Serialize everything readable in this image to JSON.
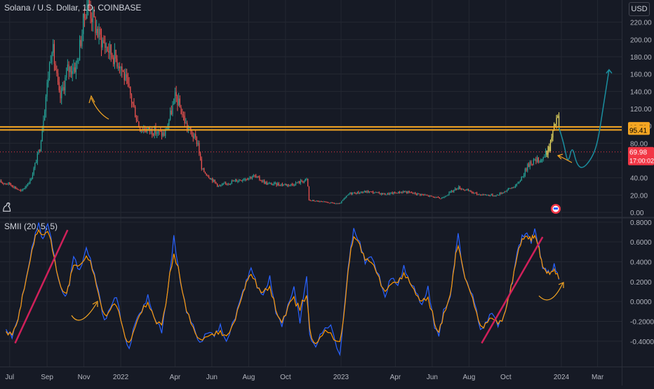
{
  "header": {
    "symbol_title": "Solana / U.S. Dollar, 1D, COINBASE",
    "currency": "USD"
  },
  "indicator": {
    "title": "SMII (20, 5, 5)"
  },
  "colors": {
    "background": "#161a25",
    "grid": "#242832",
    "candle_up": "#26a69a",
    "candle_down": "#ef5350",
    "level_line": "#f5a623",
    "price_line": "#f23645",
    "projection": "#1a8e9f",
    "smi": "#2962ff",
    "signal": "#ff9800",
    "trendline": "#d0205a",
    "annotation_arrow": "#f5a623",
    "highlight": "#f5e663"
  },
  "chart_data": [
    {
      "type": "candlestick",
      "title": "Solana / U.S. Dollar, 1D, COINBASE",
      "y_ticks": [
        "220.00",
        "200.00",
        "180.00",
        "160.00",
        "140.00",
        "120.00",
        "100.00",
        "80.00",
        "60.00",
        "40.00",
        "20.00",
        "0.00"
      ],
      "ylim": [
        0,
        240
      ],
      "x_ticks": [
        "Jul",
        "Sep",
        "Nov",
        "2022",
        "Apr",
        "Jun",
        "Aug",
        "Oct",
        "2023",
        "Apr",
        "Jun",
        "Aug",
        "Oct",
        "2024",
        "Mar"
      ],
      "x_tick_dates": [
        "2021-07-01",
        "2021-09-01",
        "2021-11-01",
        "2022-01-01",
        "2022-04-01",
        "2022-06-01",
        "2022-08-01",
        "2022-10-01",
        "2023-01-01",
        "2023-04-01",
        "2023-06-01",
        "2023-08-01",
        "2023-10-01",
        "2024-01-01",
        "2024-03-01"
      ],
      "xlim": [
        "2021-06-15",
        "2024-04-10"
      ],
      "price_path": [
        [
          "2021-06-15",
          35
        ],
        [
          "2021-07-01",
          33
        ],
        [
          "2021-07-20",
          24
        ],
        [
          "2021-08-05",
          38
        ],
        [
          "2021-08-20",
          75
        ],
        [
          "2021-09-09",
          195
        ],
        [
          "2021-09-22",
          130
        ],
        [
          "2021-10-05",
          165
        ],
        [
          "2021-10-20",
          170
        ],
        [
          "2021-11-06",
          245
        ],
        [
          "2021-11-25",
          205
        ],
        [
          "2021-12-10",
          190
        ],
        [
          "2021-12-31",
          172
        ],
        [
          "2022-01-15",
          140
        ],
        [
          "2022-02-01",
          98
        ],
        [
          "2022-02-20",
          95
        ],
        [
          "2022-03-15",
          90
        ],
        [
          "2022-04-02",
          135
        ],
        [
          "2022-04-20",
          100
        ],
        [
          "2022-05-09",
          80
        ],
        [
          "2022-05-15",
          50
        ],
        [
          "2022-06-13",
          30
        ],
        [
          "2022-07-01",
          35
        ],
        [
          "2022-08-10",
          42
        ],
        [
          "2022-09-01",
          33
        ],
        [
          "2022-10-10",
          32
        ],
        [
          "2022-11-06",
          38
        ],
        [
          "2022-11-09",
          14
        ],
        [
          "2022-12-29",
          9.8
        ],
        [
          "2023-01-15",
          22
        ],
        [
          "2023-02-15",
          24
        ],
        [
          "2023-03-15",
          21
        ],
        [
          "2023-04-15",
          24
        ],
        [
          "2023-05-20",
          20
        ],
        [
          "2023-06-15",
          16
        ],
        [
          "2023-07-14",
          29
        ],
        [
          "2023-08-15",
          21
        ],
        [
          "2023-09-15",
          19.5
        ],
        [
          "2023-10-20",
          32
        ],
        [
          "2023-11-10",
          58
        ],
        [
          "2023-12-01",
          62
        ],
        [
          "2023-12-12",
          75
        ],
        [
          "2023-12-25",
          112
        ],
        [
          "2023-12-28",
          98
        ]
      ],
      "levels": [
        {
          "label": "98.79",
          "value": 98.79
        },
        {
          "label": "95.41",
          "value": 95.41
        }
      ],
      "last_price": {
        "label": "69.98",
        "value": 69.98,
        "countdown": "17:00:02"
      },
      "projection_path": [
        [
          "2023-12-28",
          98
        ],
        [
          "2024-01-05",
          80
        ],
        [
          "2024-01-12",
          55
        ],
        [
          "2024-01-19",
          78
        ],
        [
          "2024-01-26",
          56
        ],
        [
          "2024-02-05",
          50
        ],
        [
          "2024-02-20",
          62
        ],
        [
          "2024-03-01",
          80
        ],
        [
          "2024-03-10",
          120
        ],
        [
          "2024-03-20",
          165
        ]
      ]
    },
    {
      "type": "line",
      "title": "SMII (20, 5, 5)",
      "y_ticks": [
        "0.8000",
        "0.6000",
        "0.4000",
        "0.2000",
        "0.0000",
        "-0.2000",
        "-0.4000"
      ],
      "ylim": [
        -0.55,
        0.82
      ],
      "series": [
        {
          "points": [
            [
              "2021-06-25",
              -0.28
            ],
            [
              "2021-07-05",
              -0.35
            ],
            [
              "2021-07-15",
              -0.18
            ],
            [
              "2021-07-22",
              0.05
            ],
            [
              "2021-08-01",
              0.35
            ],
            [
              "2021-08-10",
              0.62
            ],
            [
              "2021-08-18",
              0.78
            ],
            [
              "2021-08-25",
              0.62
            ],
            [
              "2021-09-02",
              0.8
            ],
            [
              "2021-09-10",
              0.55
            ],
            [
              "2021-09-20",
              0.2
            ],
            [
              "2021-10-01",
              0.05
            ],
            [
              "2021-10-08",
              0.18
            ],
            [
              "2021-10-15",
              0.45
            ],
            [
              "2021-10-25",
              0.3
            ],
            [
              "2021-11-05",
              0.55
            ],
            [
              "2021-11-15",
              0.35
            ],
            [
              "2021-11-25",
              0.1
            ],
            [
              "2021-12-05",
              -0.2
            ],
            [
              "2021-12-15",
              -0.05
            ],
            [
              "2021-12-25",
              0.05
            ],
            [
              "2022-01-05",
              -0.3
            ],
            [
              "2022-01-15",
              -0.48
            ],
            [
              "2022-01-25",
              -0.2
            ],
            [
              "2022-02-05",
              -0.1
            ],
            [
              "2022-02-15",
              0.05
            ],
            [
              "2022-02-25",
              -0.15
            ],
            [
              "2022-03-10",
              -0.3
            ],
            [
              "2022-03-20",
              0.1
            ],
            [
              "2022-03-30",
              0.65
            ],
            [
              "2022-04-10",
              0.2
            ],
            [
              "2022-04-20",
              -0.1
            ],
            [
              "2022-05-01",
              -0.25
            ],
            [
              "2022-05-12",
              -0.42
            ],
            [
              "2022-05-25",
              -0.3
            ],
            [
              "2022-06-05",
              -0.35
            ],
            [
              "2022-06-15",
              -0.25
            ],
            [
              "2022-06-25",
              -0.4
            ],
            [
              "2022-07-10",
              -0.15
            ],
            [
              "2022-07-20",
              0.05
            ],
            [
              "2022-07-28",
              0.2
            ],
            [
              "2022-08-05",
              0.35
            ],
            [
              "2022-08-15",
              0.15
            ],
            [
              "2022-08-25",
              0.05
            ],
            [
              "2022-09-05",
              0.25
            ],
            [
              "2022-09-15",
              -0.1
            ],
            [
              "2022-09-25",
              -0.25
            ],
            [
              "2022-10-05",
              -0.05
            ],
            [
              "2022-10-15",
              0.15
            ],
            [
              "2022-10-25",
              -0.2
            ],
            [
              "2022-11-05",
              0.25
            ],
            [
              "2022-11-10",
              -0.35
            ],
            [
              "2022-11-20",
              -0.45
            ],
            [
              "2022-12-01",
              -0.3
            ],
            [
              "2022-12-15",
              -0.25
            ],
            [
              "2022-12-30",
              -0.55
            ],
            [
              "2023-01-08",
              0.05
            ],
            [
              "2023-01-15",
              0.45
            ],
            [
              "2023-01-22",
              0.72
            ],
            [
              "2023-02-01",
              0.6
            ],
            [
              "2023-02-10",
              0.4
            ],
            [
              "2023-02-20",
              0.45
            ],
            [
              "2023-03-05",
              0.25
            ],
            [
              "2023-03-15",
              0.05
            ],
            [
              "2023-03-25",
              0.25
            ],
            [
              "2023-04-05",
              0.15
            ],
            [
              "2023-04-15",
              0.35
            ],
            [
              "2023-04-25",
              0.2
            ],
            [
              "2023-05-05",
              0.1
            ],
            [
              "2023-05-15",
              -0.05
            ],
            [
              "2023-05-25",
              0.15
            ],
            [
              "2023-06-05",
              -0.25
            ],
            [
              "2023-06-12",
              -0.35
            ],
            [
              "2023-06-20",
              -0.1
            ],
            [
              "2023-07-01",
              0.05
            ],
            [
              "2023-07-08",
              0.4
            ],
            [
              "2023-07-14",
              0.68
            ],
            [
              "2023-07-22",
              0.3
            ],
            [
              "2023-08-01",
              0.15
            ],
            [
              "2023-08-10",
              0.0
            ],
            [
              "2023-08-20",
              -0.3
            ],
            [
              "2023-08-28",
              -0.22
            ],
            [
              "2023-09-08",
              -0.1
            ],
            [
              "2023-09-18",
              -0.25
            ],
            [
              "2023-09-28",
              -0.15
            ],
            [
              "2023-10-05",
              0.05
            ],
            [
              "2023-10-12",
              0.2
            ],
            [
              "2023-10-20",
              0.5
            ],
            [
              "2023-10-28",
              0.65
            ],
            [
              "2023-11-05",
              0.7
            ],
            [
              "2023-11-12",
              0.6
            ],
            [
              "2023-11-18",
              0.72
            ],
            [
              "2023-11-25",
              0.55
            ],
            [
              "2023-12-01",
              0.35
            ],
            [
              "2023-12-08",
              0.3
            ],
            [
              "2023-12-15",
              0.28
            ],
            [
              "2023-12-20",
              0.38
            ],
            [
              "2023-12-28",
              0.22
            ]
          ]
        }
      ]
    }
  ]
}
